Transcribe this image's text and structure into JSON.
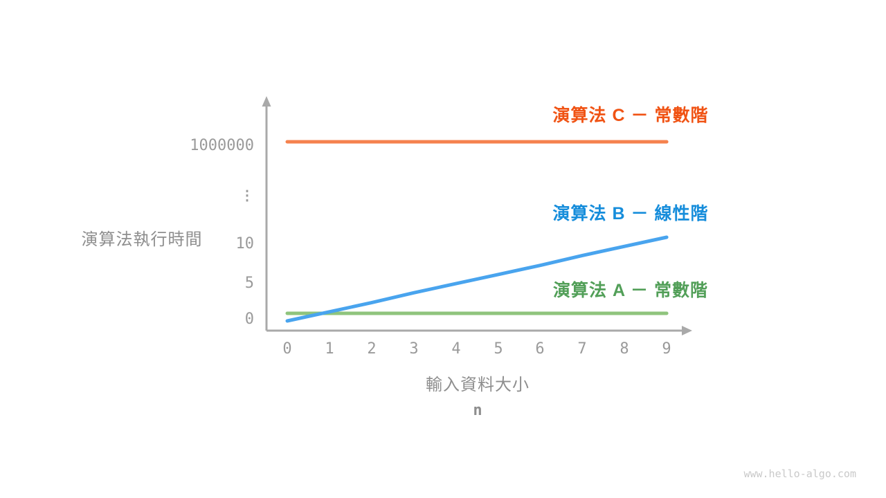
{
  "watermark": {
    "text": "www.hello-algo.com",
    "color": "#c9c9c9"
  },
  "chart_data": {
    "type": "line",
    "title": "",
    "ylabel": "演算法執行時間",
    "xlabel": "輸入資料大小",
    "xlabel_variable": "n",
    "x": [
      0,
      1,
      2,
      3,
      4,
      5,
      6,
      7,
      8,
      9
    ],
    "x_ticks": [
      "0",
      "1",
      "2",
      "3",
      "4",
      "5",
      "6",
      "7",
      "8",
      "9"
    ],
    "y_ticks": [
      "0",
      "5",
      "10",
      "⋮",
      "1000000"
    ],
    "y_axis_break": true,
    "ylim_lower_segment": [
      0,
      12
    ],
    "grid": false,
    "legend_position": "labels-inline-above-lines",
    "axis_color": "#a9a9a9",
    "tick_label_color": "#9a9a9a",
    "axis_title_color": "#8e8e8e",
    "series": [
      {
        "id": "C",
        "name": "演算法 C － 常數階",
        "complexity": "constant",
        "line_color": "#f5824e",
        "label_color": "#f05314",
        "values": [
          1000000,
          1000000,
          1000000,
          1000000,
          1000000,
          1000000,
          1000000,
          1000000,
          1000000,
          1000000
        ]
      },
      {
        "id": "B",
        "name": "演算法 B － 線性階",
        "complexity": "linear",
        "line_color": "#49a4ee",
        "label_color": "#168ddb",
        "values": [
          0,
          1.2,
          2.4,
          3.7,
          4.9,
          6.1,
          7.3,
          8.6,
          9.8,
          11
        ]
      },
      {
        "id": "A",
        "name": "演算法 A － 常數階",
        "complexity": "constant",
        "line_color": "#8fc47d",
        "label_color": "#529f58",
        "values": [
          1,
          1,
          1,
          1,
          1,
          1,
          1,
          1,
          1,
          1
        ]
      }
    ]
  }
}
